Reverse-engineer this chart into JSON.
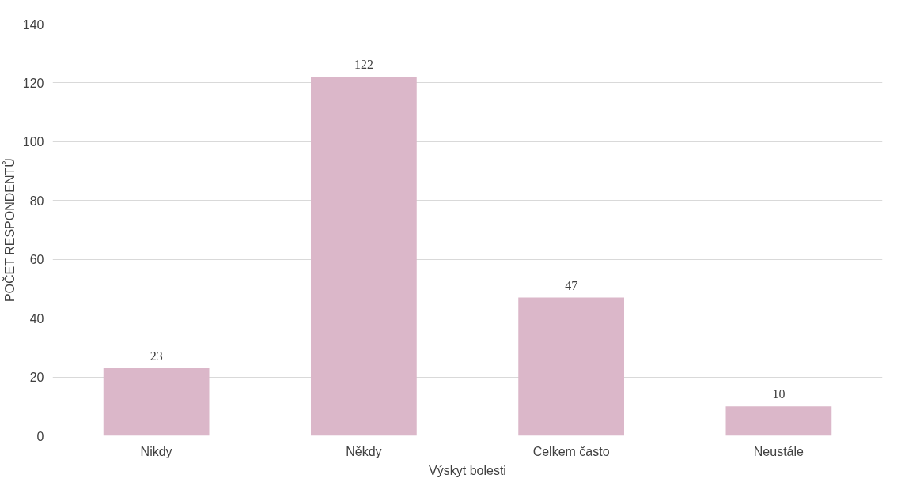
{
  "chart_data": {
    "type": "bar",
    "xlabel": "Výskyt bolesti",
    "ylabel": "POČET RESPONDENTŮ",
    "categories": [
      "Nikdy",
      "Někdy",
      "Celkem často",
      "Neustále"
    ],
    "values": [
      23,
      122,
      47,
      10
    ],
    "color": "#dbb7c9",
    "ylim": [
      0,
      140
    ],
    "yticks": [
      0,
      20,
      40,
      60,
      80,
      100,
      120,
      140
    ],
    "grid": "y",
    "data_labels": true
  }
}
